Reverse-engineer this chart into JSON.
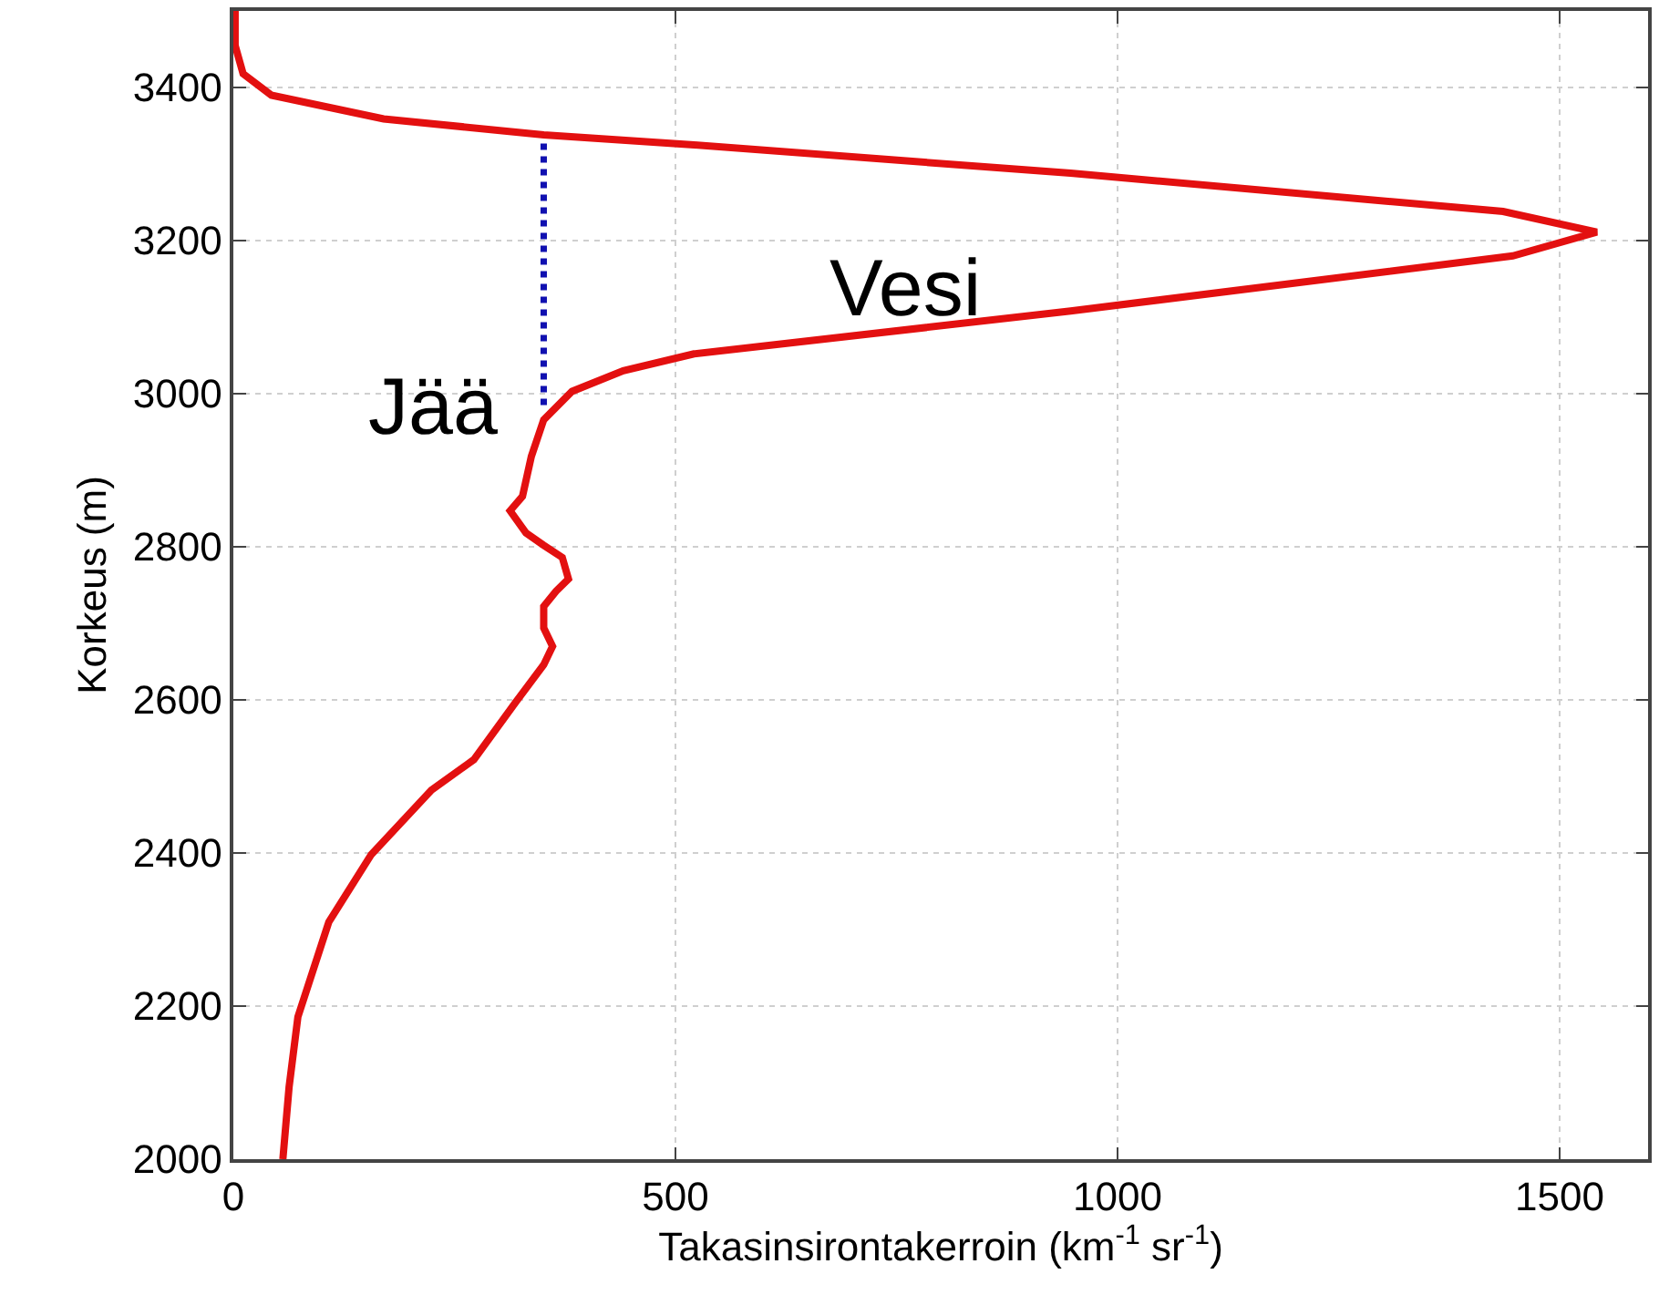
{
  "chart_data": {
    "type": "line",
    "xlabel": "Takasinsirontakerroin (km$^{-1}$ sr$^{-1}$)",
    "ylabel": "Korkeus (m)",
    "xlim": [
      0,
      1600
    ],
    "ylim": [
      2000,
      3500
    ],
    "xticks": [
      0,
      500,
      1000,
      1500
    ],
    "yticks": [
      2000,
      2200,
      2400,
      2600,
      2800,
      3000,
      3200,
      3400
    ],
    "grid": true,
    "series": [
      {
        "color": "#e31010",
        "line_style": "solid",
        "x": [
          56,
          63,
          73,
          108,
          156,
          224,
          272,
          320,
          351,
          361,
          351,
          351,
          365,
          379,
          372,
          351,
          331,
          313,
          327,
          337,
          351,
          383,
          441,
          521,
          947,
          1447,
          1542,
          1436,
          947,
          521,
          351,
          170,
          43,
          11,
          2,
          2
        ],
        "values": [
          2000,
          2094,
          2186,
          2310,
          2398,
          2482,
          2522,
          2598,
          2646,
          2670,
          2694,
          2722,
          2742,
          2758,
          2786,
          2802,
          2818,
          2847,
          2866,
          2918,
          2966,
          3003,
          3030,
          3052,
          3108,
          3180,
          3211,
          3238,
          3288,
          3325,
          3338,
          3359,
          3390,
          3418,
          3455,
          3500
        ]
      },
      {
        "color": "#1010b0",
        "line_style": "dotted",
        "x": [
          351,
          351
        ],
        "values": [
          2985,
          3334
        ]
      }
    ],
    "annotations": [
      "Jää",
      "Vesi"
    ]
  }
}
